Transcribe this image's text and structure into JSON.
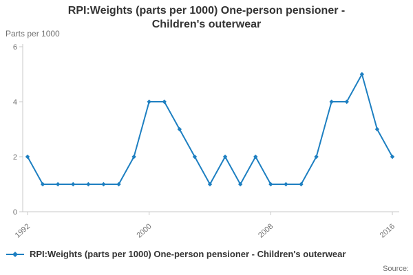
{
  "chart_data": {
    "type": "line",
    "title": "RPI:Weights (parts per 1000) One-person pensioner - Children's outerwear",
    "ylabel": "Parts per 1000",
    "x": [
      1992,
      1993,
      1994,
      1995,
      1996,
      1997,
      1998,
      1999,
      2000,
      2001,
      2002,
      2003,
      2004,
      2005,
      2006,
      2007,
      2008,
      2009,
      2010,
      2011,
      2012,
      2013,
      2014,
      2015,
      2016
    ],
    "values": [
      2,
      1,
      1,
      1,
      1,
      1,
      1,
      2,
      4,
      4,
      3,
      2,
      1,
      2,
      1,
      2,
      1,
      1,
      1,
      2,
      4,
      4,
      5,
      3,
      2
    ],
    "ylim": [
      0,
      6
    ],
    "yticks": [
      0,
      2,
      4,
      6
    ],
    "xticks": [
      1992,
      2000,
      2008,
      2016
    ],
    "grid": false,
    "legend_position": "bottom-left",
    "line_color": "#1d7fc1",
    "axis_color": "#c9c9c9",
    "legend": "RPI:Weights (parts per 1000) One-person pensioner - Children's outerwear",
    "source_label": "Source:"
  }
}
